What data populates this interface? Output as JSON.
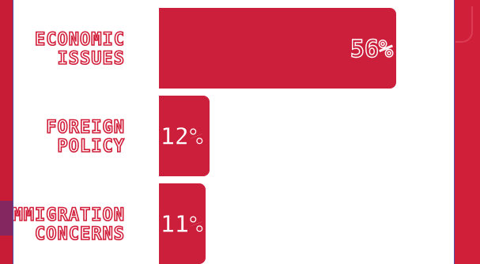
{
  "chart_data": {
    "type": "bar",
    "orientation": "horizontal",
    "categories": [
      "ECONOMIC ISSUES",
      "FOREIGN POLICY",
      "IMMIGRATION CONCERNS"
    ],
    "category_lines": [
      [
        "ECONOMIC",
        "ISSUES"
      ],
      [
        "FOREIGN",
        "POLICY"
      ],
      [
        "IMMIGRATION",
        "CONCERNS"
      ]
    ],
    "values": [
      56,
      12,
      11
    ],
    "value_labels": [
      "56%",
      "12%",
      "11%"
    ],
    "unit": "%",
    "xlim": [
      0,
      56
    ],
    "grid": false,
    "legend": "none",
    "colors": {
      "bar": "#cc1f3b",
      "background": "#d21e3a",
      "panel": "#ffffff",
      "label_outline": "#d21e3a"
    }
  }
}
